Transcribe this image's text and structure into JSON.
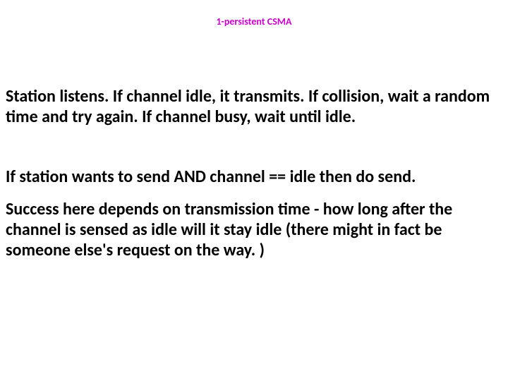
{
  "title": {
    "text": "1-persistent CSMA",
    "color": "#c800c8",
    "fontsize": 14,
    "fontweight": "bold"
  },
  "body": {
    "color": "#000000",
    "fontsize": 24,
    "fontweight": "bold",
    "paragraph1": "Station listens.  If channel idle, it transmits.  If collision, wait a random time and try again.  If channel busy, wait until idle.",
    "paragraph2": "If   station wants to send   AND     channel == idle        then do send.",
    "paragraph3": "Success here depends on transmission time - how long after the channel is sensed as idle will it stay idle (there might in fact be someone else's request on the way. )"
  },
  "background_color": "#ffffff"
}
